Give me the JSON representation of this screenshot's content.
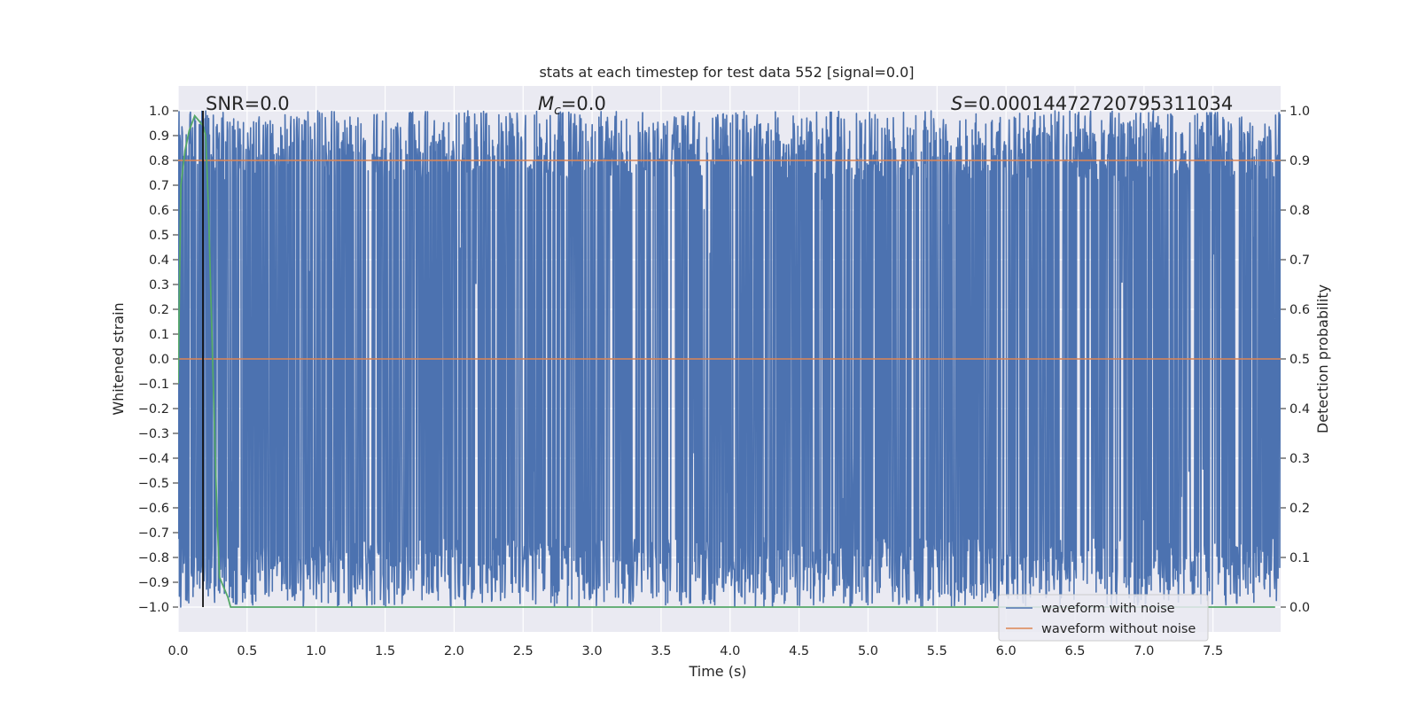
{
  "chart_data": {
    "type": "line",
    "title": "stats at each timestep for test data 552 [signal=0.0]",
    "xlabel": "Time (s)",
    "ylabel": "Whitened strain",
    "y2label": "Detection probability",
    "xlim": [
      0.0,
      7.99
    ],
    "ylim": [
      -1.1,
      1.1
    ],
    "y2lim": [
      -0.05,
      1.05
    ],
    "x_ticks": [
      "0.0",
      "0.5",
      "1.0",
      "1.5",
      "2.0",
      "2.5",
      "3.0",
      "3.5",
      "4.0",
      "4.5",
      "5.0",
      "5.5",
      "6.0",
      "6.5",
      "7.0",
      "7.5"
    ],
    "y_ticks": [
      "1.0",
      "0.9",
      "0.8",
      "0.7",
      "0.6",
      "0.5",
      "0.4",
      "0.3",
      "0.2",
      "0.1",
      "0.0",
      "−0.1",
      "−0.2",
      "−0.3",
      "−0.4",
      "−0.5",
      "−0.6",
      "−0.7",
      "−0.8",
      "−0.9",
      "−1.0"
    ],
    "y2_ticks": [
      "1.0",
      "0.9",
      "0.8",
      "0.7",
      "0.6",
      "0.5",
      "0.4",
      "0.3",
      "0.2",
      "0.1",
      "0.0"
    ],
    "grid": true,
    "legend_position": "lower-right",
    "annotations": {
      "snr": "SNR=0.0",
      "mc_symbol": "M",
      "mc_sub": "c",
      "mc_value": "=0.0",
      "s_symbol": "S",
      "s_value": "=0.00014472720795311034"
    },
    "threshold": {
      "axis": "y2",
      "value": 0.9,
      "color": "#dd8452"
    },
    "marker_line": {
      "x": 0.18,
      "color": "#111111"
    },
    "series": [
      {
        "name": "waveform with noise",
        "axis": "y",
        "color": "#4c72b0",
        "description": "dense noise spanning roughly -1.0 to 1.0 across 0 to 8 s"
      },
      {
        "name": "waveform without noise",
        "axis": "y",
        "color": "#dd8452",
        "x": [
          0.0,
          7.99
        ],
        "values": [
          0.0,
          0.0
        ]
      },
      {
        "name": "detection probability",
        "axis": "y2",
        "color": "#55a868",
        "x": [
          0.0,
          0.02,
          0.05,
          0.08,
          0.12,
          0.15,
          0.18,
          0.2,
          0.22,
          0.25,
          0.28,
          0.3,
          0.33,
          0.36,
          0.38,
          0.42,
          7.95
        ],
        "values": [
          0.45,
          0.85,
          0.92,
          0.96,
          0.99,
          0.98,
          0.97,
          0.95,
          0.8,
          0.5,
          0.2,
          0.06,
          0.04,
          0.02,
          0.0,
          0.0,
          0.0
        ]
      }
    ],
    "colors": {
      "plot_background": "#eaeaf2",
      "grid": "#ffffff"
    }
  }
}
